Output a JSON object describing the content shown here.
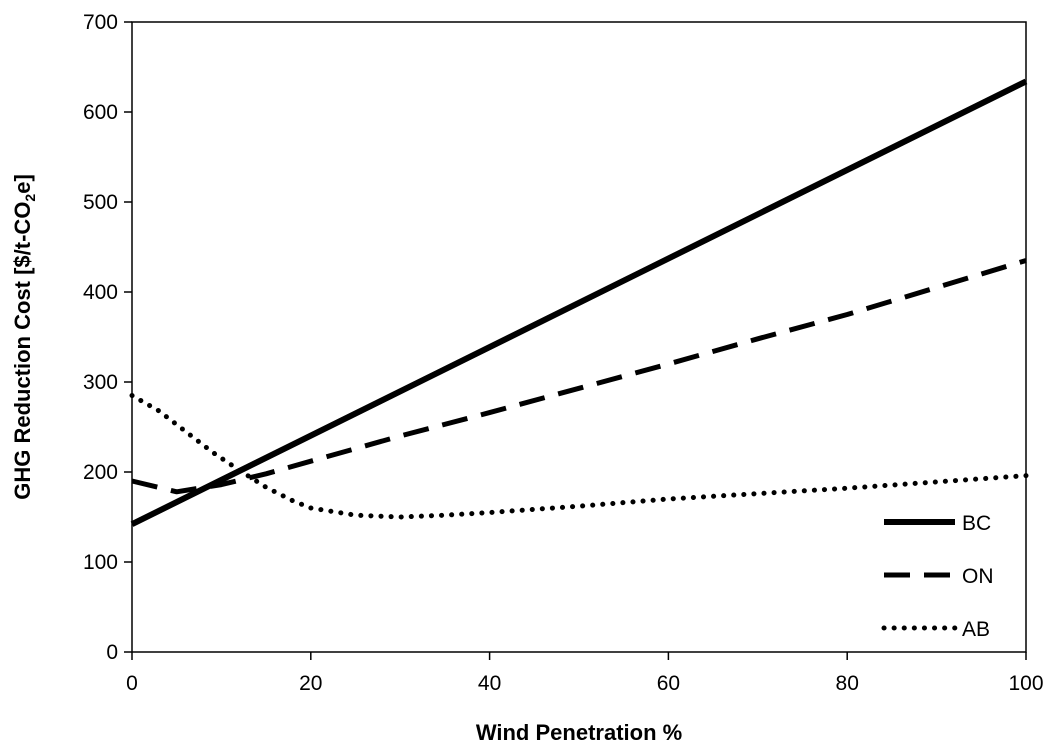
{
  "chart_data": {
    "type": "line",
    "xlabel": "Wind Penetration %",
    "ylabel": "GHG Reduction Cost [$/t-CO",
    "ylabel_sub": "2",
    "ylabel_tail": "e]",
    "xlim": [
      0,
      100
    ],
    "ylim": [
      0,
      700
    ],
    "xticks": [
      0,
      20,
      40,
      60,
      80,
      100
    ],
    "yticks": [
      0,
      100,
      200,
      300,
      400,
      500,
      600,
      700
    ],
    "grid": false,
    "legend_position": "bottom-right",
    "series": [
      {
        "name": "BC",
        "style": "solid",
        "color": "#000000",
        "x": [
          0,
          100
        ],
        "y": [
          142,
          634
        ]
      },
      {
        "name": "ON",
        "style": "dashed",
        "color": "#000000",
        "x": [
          0,
          5,
          10,
          15,
          20,
          30,
          40,
          50,
          60,
          70,
          80,
          90,
          100
        ],
        "y": [
          190,
          178,
          186,
          198,
          212,
          240,
          266,
          293,
          320,
          348,
          375,
          405,
          435
        ]
      },
      {
        "name": "AB",
        "style": "dotted",
        "color": "#000000",
        "x": [
          0,
          3,
          6,
          9,
          12,
          15,
          18,
          20,
          25,
          30,
          35,
          40,
          50,
          60,
          70,
          80,
          90,
          100
        ],
        "y": [
          285,
          268,
          245,
          222,
          202,
          183,
          168,
          160,
          152,
          150,
          152,
          155,
          162,
          170,
          176,
          182,
          189,
          196
        ]
      }
    ]
  }
}
